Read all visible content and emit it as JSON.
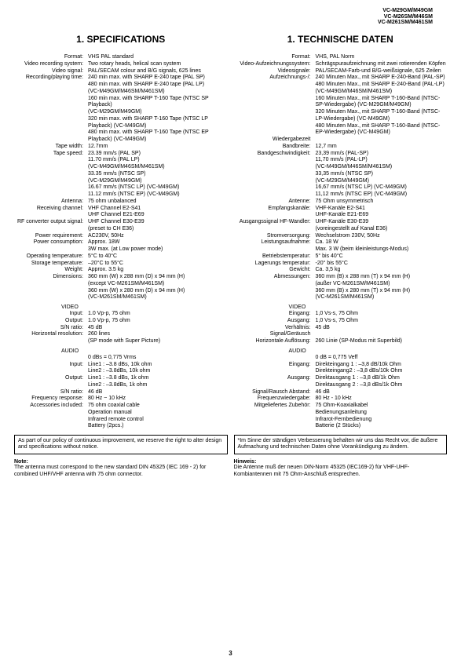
{
  "models": [
    "VC-M29GM/M49GM",
    "VC-M26SM/M46SM",
    "VC-M261SM/M461SM"
  ],
  "left": {
    "title": "1. SPECIFICATIONS",
    "rows": [
      {
        "l": "Format:",
        "v": "VHS PAL standard"
      },
      {
        "l": "Video recording system:",
        "v": "Two rotary heads, helical scan system"
      },
      {
        "l": "Video signal:",
        "v": "PAL/SECAM colour and B/G signals, 625 lines"
      },
      {
        "l": "Recording/playing time:",
        "v": "240 min max. with SHARP E-240 tape (PAL SP)"
      },
      {
        "l": "",
        "v": "480 min max. with SHARP E-240 tape (PAL LP)"
      },
      {
        "l": "",
        "v": "(VC-M49GM/M46SM/M461SM)"
      },
      {
        "l": "",
        "v": "160 min max. with SHARP T-160 Tape (NTSC SP Playback)"
      },
      {
        "l": "",
        "v": "(VC-M29GM/M49GM)"
      },
      {
        "l": "",
        "v": "320 min max. with SHARP T-160 Tape (NTSC LP Playback) (VC-M49GM)"
      },
      {
        "l": "",
        "v": "480 min max. with SHARP T-160 Tape (NTSC EP Playback) (VC-M49GM)"
      },
      {
        "l": "Tape width:",
        "v": "12.7mm"
      },
      {
        "l": "Tape speed:",
        "v": "23.39 mm/s (PAL SP)"
      },
      {
        "l": "",
        "v": "11.70 mm/s (PAL LP)"
      },
      {
        "l": "",
        "v": "(VC-M49GM/M46SM/M461SM)"
      },
      {
        "l": "",
        "v": "33.35 mm/s (NTSC SP)"
      },
      {
        "l": "",
        "v": "(VC-M29GM/M49GM)"
      },
      {
        "l": "",
        "v": "16.67 mm/s (NTSC LP) (VC-M49GM)"
      },
      {
        "l": "",
        "v": "11.12 mm/s (NTSC EP) (VC-M49GM)"
      },
      {
        "l": "Antenna:",
        "v": "75 ohm unbalanced"
      },
      {
        "l": "Receiving channel:",
        "v": "VHF Channel E2-S41"
      },
      {
        "l": "",
        "v": "UHF Channel E21-E69"
      },
      {
        "l": "RF converter output signal:",
        "v": "UHF Channel E30-E39"
      },
      {
        "l": "",
        "v": "(preset to CH E36)"
      },
      {
        "l": "Power requirement:",
        "v": "AC230V, 50Hz"
      },
      {
        "l": "Power consumption:",
        "v": "Approx. 18W"
      },
      {
        "l": "",
        "v": "3W max. (at Low power mode)"
      },
      {
        "l": "Operating temperature:",
        "v": "5°C to 40°C"
      },
      {
        "l": "Storage temperature:",
        "v": "–20°C to 55°C"
      },
      {
        "l": "Weight:",
        "v": "Approx. 3.5 kg"
      },
      {
        "l": "Dimensions:",
        "v": "360 mm (W) x 288 mm (D) x 94 mm (H)"
      },
      {
        "l": "",
        "v": "(except VC-M261SM/M461SM)"
      },
      {
        "l": "",
        "v": "360 mm (W) x 280 mm (D) x 94 mm (H)"
      },
      {
        "l": "",
        "v": "(VC-M261SM/M461SM)"
      }
    ],
    "video_head": "VIDEO",
    "video_rows": [
      {
        "l": "Input:",
        "v": "1.0 Vp-p, 75 ohm"
      },
      {
        "l": "Output:",
        "v": "1.0 Vp-p, 75 ohm"
      },
      {
        "l": "S/N ratio:",
        "v": "45 dB"
      },
      {
        "l": "Horizontal resolution:",
        "v": "260 lines"
      },
      {
        "l": "",
        "v": "(SP mode with Super Picture)"
      }
    ],
    "audio_head": "AUDIO",
    "audio_rows": [
      {
        "l": "",
        "v": "0 dBs = 0,775 Vrms"
      },
      {
        "l": "Input:",
        "v": "Line1 : –3.8 dBs, 10k ohm"
      },
      {
        "l": "",
        "v": "Line2 : –3.8dBs, 10k ohm"
      },
      {
        "l": "Output:",
        "v": "Line1 : –3.8 dBs, 1k ohm"
      },
      {
        "l": "",
        "v": "Line2 : –3.8dBs, 1k ohm"
      },
      {
        "l": "S/N ratio:",
        "v": "46 dB"
      },
      {
        "l": "Frequency response:",
        "v": "80 Hz ~ 10 kHz"
      },
      {
        "l": "Accessories included:",
        "v": "75 ohm coaxial cable"
      },
      {
        "l": "",
        "v": "Operation manual"
      },
      {
        "l": "",
        "v": "Infrared remote control"
      },
      {
        "l": "",
        "v": "Battery (2pcs.)"
      }
    ],
    "box": "As part of our policy of continuous improvement, we reserve the right to alter design and specifications without notice.",
    "note_title": "Note:",
    "note": "The antenna must correspond to the new standard DIN 45325 (IEC 169 - 2) for combined UHF/VHF antenna with 75 ohm connector."
  },
  "right": {
    "title": "1. TECHNISCHE DATEN",
    "rows": [
      {
        "l": "Format:",
        "v": "VHS, PAL Norm"
      },
      {
        "l": "Video-Aufzeichnungssystem:",
        "v": "Schrägspuraufzeichnung mit zwei rotierenden Köpfen"
      },
      {
        "l": "Videosignale:",
        "v": "PAL/SECAM-Farb-und B/G-weißsignale, 625 Zeilen"
      },
      {
        "l": "Aufzeichnungs-/:",
        "v": "240 Minuten Max., mit SHARP E-240-Band (PAL-SP)"
      },
      {
        "l": "",
        "v": "480 Minuten Max., mit SHARP E-240-Band (PAL-LP) (VC-M49GM/M46SM/M461SM)"
      },
      {
        "l": "",
        "v": "160 Minuten Max., mit SHARP T-160-Band (NTSC-SP-Wiedergabe) (VC-M29GM/M49GM)"
      },
      {
        "l": "",
        "v": "320 Minuten Max., mit SHARP T-160-Band (NTSC-LP-Wiedergabe) (VC-M49GM)"
      },
      {
        "l": "",
        "v": "480 Minuten Max., mit SHARP T-160-Band (NTSC-EP-Wiedergabe) (VC-M49GM)"
      },
      {
        "l": "Wiedergabezeit",
        "v": ""
      },
      {
        "l": "Bandbreite:",
        "v": "12,7 mm"
      },
      {
        "l": "Bandgeschwindigkeit:",
        "v": "23,39 mm/s (PAL-SP)"
      },
      {
        "l": "",
        "v": "11,70 mm/s (PAL-LP)"
      },
      {
        "l": "",
        "v": "(VC-M49GM/M46SM/M461SM)"
      },
      {
        "l": "",
        "v": "33,35 mm/s (NTSC SP)"
      },
      {
        "l": "",
        "v": "(VC-M29GM/M49GM)"
      },
      {
        "l": "",
        "v": "16,67 mm/s (NTSC LP) (VC-M49GM)"
      },
      {
        "l": "",
        "v": "11,12 mm/s (NTSC EP) (VC-M49GM)"
      },
      {
        "l": "Antenne:",
        "v": "75 Ohm unsymmetrisch"
      },
      {
        "l": "Empfangskanäle:",
        "v": "VHF-Kanäle E2-S41"
      },
      {
        "l": "",
        "v": "UHF-Kanäle E21-E69"
      },
      {
        "l": "Ausgangssignal HF-Wandler:",
        "v": "UHF-Kanäle E30-E39"
      },
      {
        "l": "",
        "v": "(voreingestellt auf Kanal E36)"
      },
      {
        "l": "Stromversorgung:",
        "v": "Wechselstrom 230V, 50Hz"
      },
      {
        "l": "Leistungsaufnahme:",
        "v": "Ca. 18 W"
      },
      {
        "l": "",
        "v": "Max. 3 W (beim kleinleistungs-Modus)"
      },
      {
        "l": "Betriebstemperatur:",
        "v": "5° bis 40°C"
      },
      {
        "l": "Lagerungs temperatur:",
        "v": "-20° bis 55°C"
      },
      {
        "l": "Gewicht:",
        "v": "Ca. 3,5 kg"
      },
      {
        "l": "Abmessungen:",
        "v": "360 mm (B) x 288 mm (T) x 94 mm (H)"
      },
      {
        "l": "",
        "v": "(außer VC-M261SM/M461SM)"
      },
      {
        "l": "",
        "v": "360 mm (B) x 280 mm (T) x 94 mm (H)"
      },
      {
        "l": "",
        "v": "(VC-M261SM/M461SM)"
      }
    ],
    "video_head": "VIDEO",
    "video_rows": [
      {
        "l": "Eingang:",
        "v": "1,0 Vs-s, 75 Ohm"
      },
      {
        "l": "Ausgang:",
        "v": "1,0 Vs-s, 75 Ohm"
      },
      {
        "l": "Verhältnis:",
        "v": "45 dB"
      },
      {
        "l": "Signal/Geräusch",
        "v": ""
      },
      {
        "l": "Horizontale Auflösung:",
        "v": "260 Linie (SP-Modus mit Superbild)"
      }
    ],
    "audio_head": "AUDIO",
    "audio_rows": [
      {
        "l": "",
        "v": "0 dB = 0,775 Veff"
      },
      {
        "l": "Eingang:",
        "v": "Direkteingang 1 : –3,8 dB/10k Ohm"
      },
      {
        "l": "",
        "v": "Direkteingang2 : –3,8 dBs/10k Ohm"
      },
      {
        "l": "Ausgang:",
        "v": "Direktausgang 1 : –3,8 dB/1k Ohm"
      },
      {
        "l": "",
        "v": "Direktausgang 2 : –3,8 dBs/1k Ohm"
      },
      {
        "l": "Signal/Rausch Abstand:",
        "v": "46 dB"
      },
      {
        "l": "Frequenzwiedergabe:",
        "v": "80 Hz - 10 kHz"
      },
      {
        "l": "Mitgeliefertes Zubehör:",
        "v": "75 Ohm-Koaxialkabel"
      },
      {
        "l": "",
        "v": "Bedienungsanleitung"
      },
      {
        "l": "",
        "v": "Infrarot-Fernbedienung"
      },
      {
        "l": "",
        "v": "Batterie (2 Stücks)"
      }
    ],
    "box": "*Im Sinne der ständigen Verbesserung behalten wir uns das Recht vor, die äußere Aufmachung und technischen Daten ohne Vorankündigung zu ändern.",
    "note_title": "Hinweis:",
    "note": "Die Antenne muß der neuen DIN-Norm 45325 (IEC169-2) für VHF-UHF-Kombiantennen mit 75 Ohm-Anschluß entsprechen."
  },
  "page": "3"
}
